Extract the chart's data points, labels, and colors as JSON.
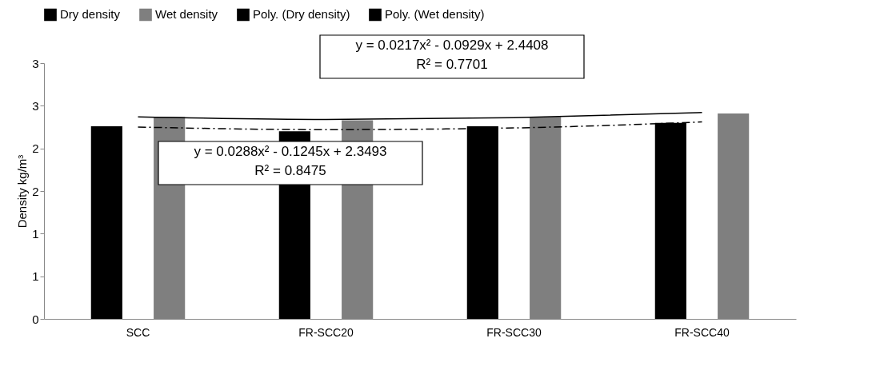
{
  "chart_data": {
    "type": "bar",
    "categories": [
      "SCC",
      "FR-SCC20",
      "FR-SCC30",
      "FR-SCC40"
    ],
    "ylabel": "Density kg/m³",
    "ylim": [
      0,
      3
    ],
    "yticks": [
      0,
      {
        "value": 0.5,
        "label": "1"
      },
      1,
      {
        "value": 1.5,
        "label": "2"
      },
      2,
      {
        "value": 2.5,
        "label": "3"
      },
      3
    ],
    "series": [
      {
        "name": "Dry density",
        "color": "#000000",
        "values": [
          2.26,
          2.2,
          2.26,
          2.3
        ]
      },
      {
        "name": "Wet density",
        "color": "#7f7f7f",
        "values": [
          2.37,
          2.33,
          2.37,
          2.41
        ]
      },
      {
        "name": "Poly. (Dry density)",
        "type": "line",
        "line_style": "dashed",
        "color": "#000000",
        "x": [
          "SCC",
          "FR-SCC20",
          "FR-SCC30",
          "FR-SCC40"
        ],
        "values": [
          2.25,
          2.22,
          2.24,
          2.31
        ]
      },
      {
        "name": "Poly. (Wet density)",
        "type": "line",
        "line_style": "solid",
        "color": "#000000",
        "x": [
          "SCC",
          "FR-SCC20",
          "FR-SCC30",
          "FR-SCC40"
        ],
        "values": [
          2.37,
          2.34,
          2.36,
          2.42
        ]
      }
    ],
    "annotations": [
      "y = 0.0217x² - 0.0929x + 2.4408\nR² = 0.7701",
      "y = 0.0288x² - 0.1245x + 2.3493\nR² = 0.8475"
    ],
    "legend": "top",
    "grid": false,
    "marker": "none"
  }
}
